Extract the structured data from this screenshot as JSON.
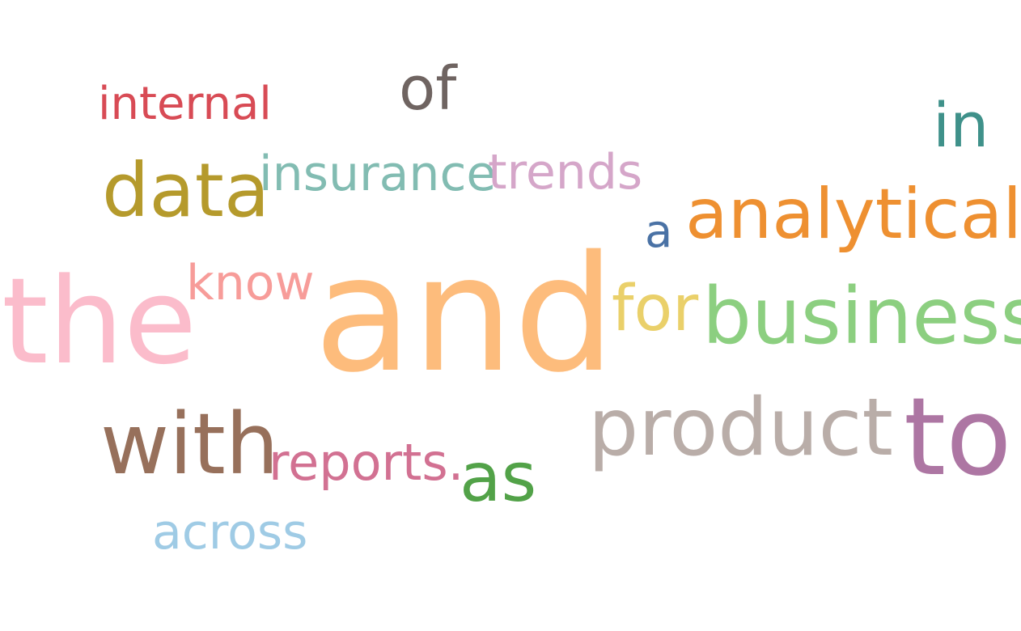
{
  "words": {
    "internal": {
      "text": "internal",
      "color": "#d84b55"
    },
    "of": {
      "text": "of",
      "color": "#6f6461"
    },
    "in": {
      "text": "in",
      "color": "#3f918a"
    },
    "data": {
      "text": "data",
      "color": "#b59a2c"
    },
    "insurance": {
      "text": "insurance",
      "color": "#82bcb2"
    },
    "trends": {
      "text": "trends",
      "color": "#d5a6c9"
    },
    "a": {
      "text": "a",
      "color": "#4a72a5"
    },
    "analytical": {
      "text": "analytical",
      "color": "#ee9031"
    },
    "the": {
      "text": "the",
      "color": "#fbbccb"
    },
    "know": {
      "text": "know",
      "color": "#f79c99"
    },
    "and": {
      "text": "and",
      "color": "#fdbc7c"
    },
    "for": {
      "text": "for",
      "color": "#ead06a"
    },
    "business": {
      "text": "business",
      "color": "#8ccf80"
    },
    "product": {
      "text": "product",
      "color": "#b9ada8"
    },
    "to": {
      "text": "to",
      "color": "#ad76a3"
    },
    "with": {
      "text": "with",
      "color": "#97705b"
    },
    "reports": {
      "text": "reports.",
      "color": "#d27192"
    },
    "as": {
      "text": "as",
      "color": "#52a248"
    },
    "across": {
      "text": "across",
      "color": "#9fcbe5"
    }
  }
}
